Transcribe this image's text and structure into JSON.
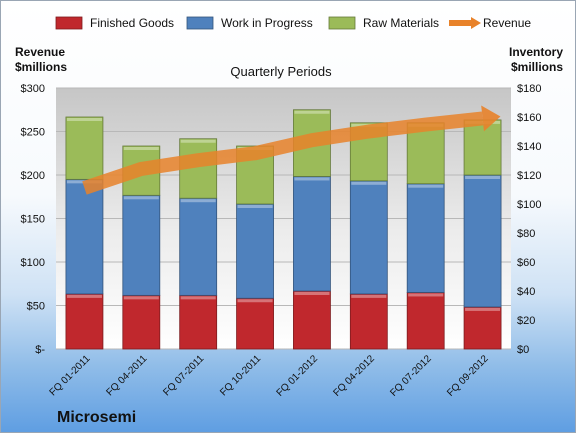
{
  "chart_data": {
    "type": "bar",
    "stacked": true,
    "title": "Quarterly Periods",
    "brand": "Microsemi",
    "categories": [
      "FQ 01-2011",
      "FQ 04-2011",
      "FQ 07-2011",
      "FQ 10-2011",
      "FQ 01-2012",
      "FQ 04-2012",
      "FQ 07-2012",
      "FQ 09-2012"
    ],
    "left_axis": {
      "label_line1": "Revenue",
      "label_line2": "$millions",
      "ylim": [
        0,
        300
      ],
      "ticks": [
        "$-",
        "$50",
        "$100",
        "$150",
        "$200",
        "$250",
        "$300"
      ]
    },
    "right_axis": {
      "label_line1": "Inventory",
      "label_line2": "$millions",
      "ylim": [
        0,
        180
      ],
      "ticks": [
        "$0",
        "$20",
        "$40",
        "$60",
        "$80",
        "$100",
        "$120",
        "$140",
        "$160",
        "$180"
      ]
    },
    "legend_position": "top",
    "series": [
      {
        "name": "Finished Goods",
        "axis": "right",
        "color": "#c0282d",
        "values": [
          38,
          37,
          37,
          35,
          40,
          38,
          39,
          29
        ]
      },
      {
        "name": "Work in Progress",
        "axis": "right",
        "color": "#4f81bd",
        "values": [
          79,
          69,
          67,
          65,
          79,
          78,
          75,
          91
        ]
      },
      {
        "name": "Raw Materials",
        "axis": "right",
        "color": "#9bbb59",
        "values": [
          43,
          34,
          41,
          40,
          46,
          40,
          42,
          38
        ]
      },
      {
        "name": "Revenue",
        "axis": "left",
        "type": "line",
        "color": "#e8822a",
        "values": [
          185,
          207,
          217,
          225,
          240,
          250,
          258,
          265
        ]
      }
    ]
  }
}
